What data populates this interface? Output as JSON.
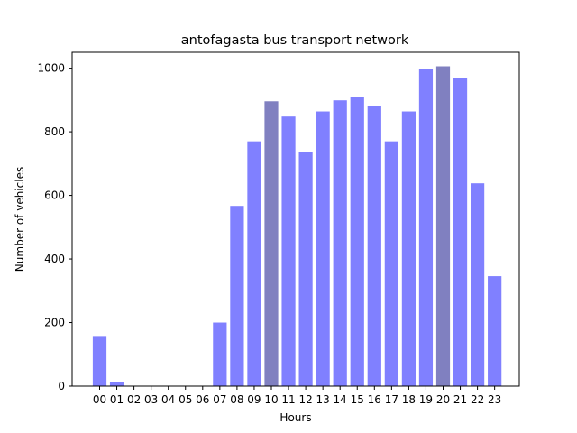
{
  "chart_data": {
    "type": "bar",
    "title": "antofagasta bus transport network",
    "xlabel": "Hours",
    "ylabel": "Number of vehicles",
    "categories": [
      "00",
      "01",
      "02",
      "03",
      "04",
      "05",
      "06",
      "07",
      "08",
      "09",
      "10",
      "11",
      "12",
      "13",
      "14",
      "15",
      "16",
      "17",
      "18",
      "19",
      "20",
      "21",
      "22",
      "23"
    ],
    "values": [
      155,
      12,
      0,
      0,
      0,
      0,
      0,
      200,
      567,
      770,
      896,
      848,
      736,
      864,
      899,
      910,
      880,
      770,
      864,
      998,
      1006,
      970,
      638,
      346
    ],
    "highlighted": [
      "10",
      "20"
    ],
    "ylim": [
      0,
      1050
    ],
    "yticks": [
      0,
      200,
      400,
      600,
      800,
      1000
    ],
    "grid": false,
    "colors": {
      "bar": "#8080ff",
      "bar_highlight": "#8080c0",
      "axis": "#000000"
    }
  }
}
